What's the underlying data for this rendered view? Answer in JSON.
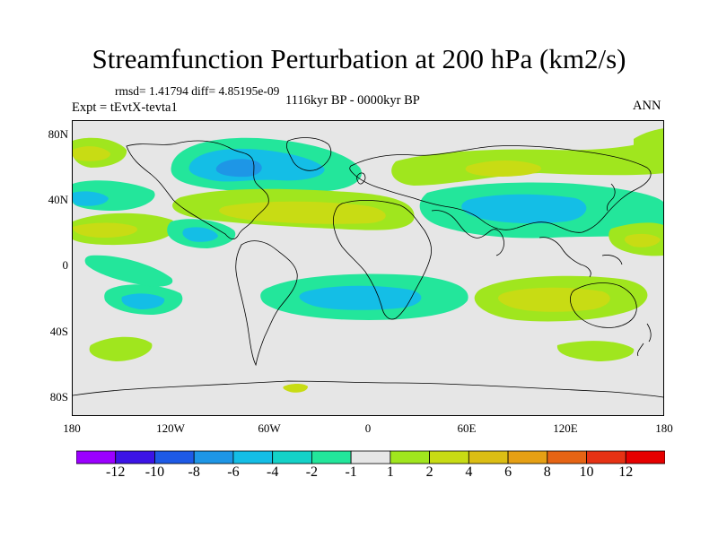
{
  "title": "Streamfunction Perturbation at 200 hPa (km2/s)",
  "stats": "rmsd= 1.41794 diff= 4.85195e-09",
  "experiment": "Expt = tEvtX-tevta1",
  "period": "1116kyr BP - 0000kyr BP",
  "season": "ANN",
  "y_ticks": [
    "80N",
    "40N",
    "0",
    "40S",
    "80S"
  ],
  "x_ticks": [
    "180",
    "120W",
    "60W",
    "0",
    "60E",
    "120E",
    "180"
  ],
  "colorbar": {
    "labels": [
      "-12",
      "-10",
      "-8",
      "-6",
      "-4",
      "-2",
      "-1",
      "1",
      "2",
      "4",
      "6",
      "8",
      "10",
      "12"
    ],
    "colors": [
      "#9b00ff",
      "#3c14e6",
      "#1e5ae6",
      "#1e96e6",
      "#14bee6",
      "#14d2c8",
      "#23e69b",
      "#e6e6e6",
      "#a0e61e",
      "#c8dc14",
      "#dcbe14",
      "#e6a014",
      "#e66414",
      "#e63214",
      "#e60000"
    ]
  },
  "palette": {
    "neutral": "#e6e6e6",
    "coast": "#000000"
  }
}
